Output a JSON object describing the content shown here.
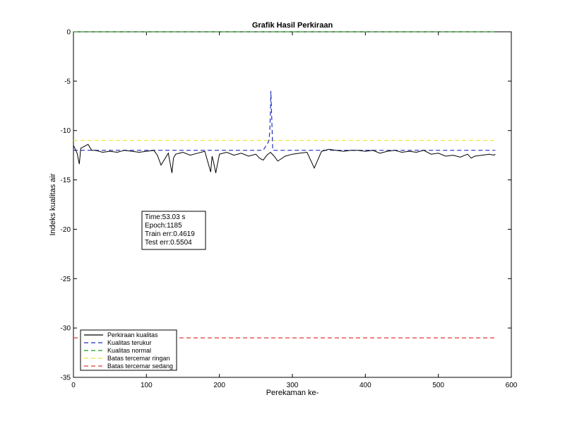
{
  "chart_data": {
    "type": "line",
    "title": "Grafik Hasil Perkiraan",
    "xlabel": "Perekaman ke-",
    "ylabel": "Indeks kualitas air",
    "xlim": [
      0,
      600
    ],
    "ylim": [
      -35,
      0
    ],
    "xticks": [
      "0",
      "100",
      "200",
      "300",
      "400",
      "500",
      "600"
    ],
    "yticks": [
      "0",
      "-5",
      "-10",
      "-15",
      "-20",
      "-25",
      "-30",
      "-35"
    ],
    "grid": false,
    "legend_position": "bottom-left",
    "series": [
      {
        "name": "Perkiraan kualitas",
        "color": "#000000",
        "style": "solid",
        "x": [
          0,
          5,
          8,
          10,
          15,
          20,
          25,
          30,
          40,
          50,
          60,
          70,
          80,
          90,
          100,
          110,
          115,
          120,
          130,
          135,
          137,
          140,
          150,
          160,
          170,
          180,
          188,
          190,
          192,
          195,
          200,
          210,
          220,
          230,
          240,
          250,
          255,
          260,
          265,
          270,
          275,
          280,
          290,
          300,
          310,
          320,
          330,
          340,
          350,
          360,
          370,
          380,
          390,
          400,
          410,
          420,
          430,
          440,
          450,
          460,
          470,
          480,
          490,
          500,
          510,
          520,
          530,
          540,
          545,
          550,
          560,
          570,
          576,
          578
        ],
        "y": [
          -11.5,
          -12.3,
          -13.4,
          -11.8,
          -11.6,
          -11.4,
          -12.0,
          -12.0,
          -12.2,
          -12.1,
          -12.2,
          -12.0,
          -12.1,
          -12.2,
          -12.1,
          -12.0,
          -12.5,
          -13.5,
          -12.3,
          -14.3,
          -12.8,
          -12.4,
          -12.2,
          -12.5,
          -12.3,
          -12.1,
          -14.2,
          -12.6,
          -13.2,
          -14.3,
          -12.4,
          -12.2,
          -12.5,
          -12.3,
          -12.6,
          -12.4,
          -12.8,
          -13.0,
          -12.5,
          -12.2,
          -12.6,
          -13.1,
          -12.6,
          -12.4,
          -12.3,
          -12.2,
          -13.8,
          -12.1,
          -11.9,
          -12.0,
          -12.1,
          -12.0,
          -12.0,
          -12.1,
          -12.0,
          -12.3,
          -12.1,
          -12.0,
          -12.2,
          -12.1,
          -12.2,
          -12.0,
          -12.4,
          -12.3,
          -12.6,
          -12.5,
          -12.7,
          -12.4,
          -12.8,
          -12.6,
          -12.5,
          -12.4,
          -12.5,
          -12.4
        ]
      },
      {
        "name": "Kualitas terukur",
        "color": "#1f2fbf",
        "style": "dashed",
        "x": [
          0,
          100,
          200,
          260,
          266,
          268,
          269,
          270,
          270.5,
          271,
          272,
          273,
          280,
          300,
          400,
          500,
          578
        ],
        "y": [
          -12,
          -12,
          -12,
          -12,
          -11.3,
          -11.0,
          -10.0,
          -8.0,
          -6.0,
          -7.0,
          -9.5,
          -12,
          -12,
          -12,
          -12,
          -12,
          -12
        ]
      },
      {
        "name": "Kualitas normal",
        "color": "#1a9e1a",
        "style": "dashed",
        "x": [
          0,
          578
        ],
        "y": [
          0,
          0
        ]
      },
      {
        "name": "Batas tercemar ringan",
        "color": "#e8e830",
        "style": "dashed",
        "x": [
          0,
          578
        ],
        "y": [
          -11,
          -11
        ]
      },
      {
        "name": "Batas tercemar sedang",
        "color": "#e03a3a",
        "style": "dashed",
        "x": [
          0,
          578
        ],
        "y": [
          -31,
          -31
        ]
      }
    ],
    "annotation": {
      "lines": [
        "Time:53.03 s",
        "Epoch:1185",
        "Train err:0.4619",
        "Test err:0.5504"
      ]
    }
  }
}
